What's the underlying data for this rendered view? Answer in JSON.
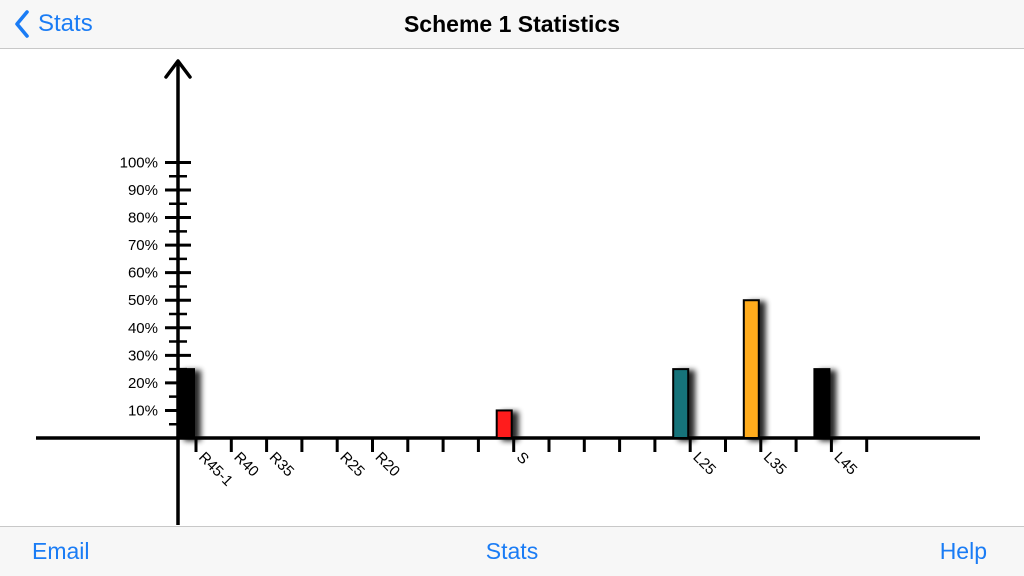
{
  "nav": {
    "back_label": "Stats",
    "title": "Scheme 1 Statistics"
  },
  "tabbar": {
    "email_label": "Email",
    "stats_label": "Stats",
    "help_label": "Help"
  },
  "colors": {
    "accent": "#1a7cf5",
    "bar_black": "#000000",
    "bar_red": "#ff1a1a",
    "bar_teal": "#15737a",
    "bar_orange": "#ffab1f"
  },
  "chart_data": {
    "type": "bar",
    "title": "",
    "xlabel": "",
    "ylabel": "",
    "ylim": [
      0,
      100
    ],
    "y_tick_labels": [
      "10%",
      "20%",
      "30%",
      "40%",
      "50%",
      "60%",
      "70%",
      "80%",
      "90%",
      "100%"
    ],
    "slots": 20,
    "labeled_categories": [
      {
        "label": "R45-1",
        "slot": 0
      },
      {
        "label": "R40",
        "slot": 1
      },
      {
        "label": "R35",
        "slot": 2
      },
      {
        "label": "R25",
        "slot": 4
      },
      {
        "label": "R20",
        "slot": 5
      },
      {
        "label": "S",
        "slot": 9
      },
      {
        "label": "L25",
        "slot": 14
      },
      {
        "label": "L35",
        "slot": 16
      },
      {
        "label": "L45",
        "slot": 18
      }
    ],
    "bars": [
      {
        "label": "R45-1",
        "slot": 0,
        "value": 25,
        "color": "#000000"
      },
      {
        "label": "S",
        "slot": 9,
        "value": 10,
        "color": "#ff1a1a"
      },
      {
        "label": "L25",
        "slot": 14,
        "value": 25,
        "color": "#15737a"
      },
      {
        "label": "L35",
        "slot": 16,
        "value": 50,
        "color": "#ffab1f"
      },
      {
        "label": "L45",
        "slot": 18,
        "value": 25,
        "color": "#000000"
      }
    ]
  }
}
